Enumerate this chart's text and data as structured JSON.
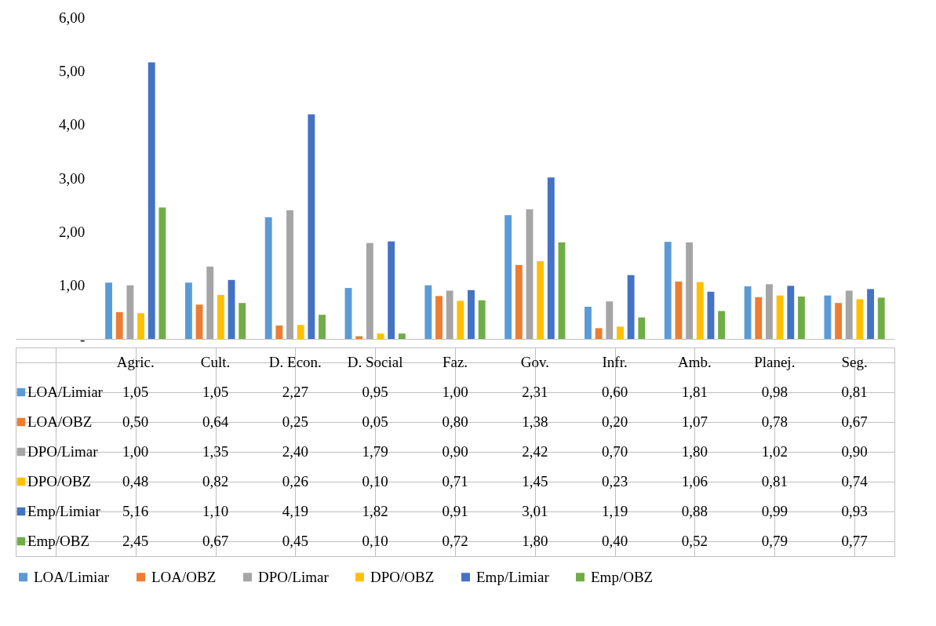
{
  "chart_data": {
    "type": "bar",
    "categories": [
      "Agric.",
      "Cult.",
      "D. Econ.",
      "D. Social",
      "Faz.",
      "Gov.",
      "Infr.",
      "Amb.",
      "Planej.",
      "Seg."
    ],
    "series": [
      {
        "name": "LOA/Limiar",
        "color": "#5b9bd5",
        "values": [
          1.05,
          1.05,
          2.27,
          0.95,
          1.0,
          2.31,
          0.6,
          1.81,
          0.98,
          0.81
        ],
        "value_labels": [
          "1,05",
          "1,05",
          "2,27",
          "0,95",
          "1,00",
          "2,31",
          "0,60",
          "1,81",
          "0,98",
          "0,81"
        ]
      },
      {
        "name": "LOA/OBZ",
        "color": "#ed7d31",
        "values": [
          0.5,
          0.64,
          0.25,
          0.05,
          0.8,
          1.38,
          0.2,
          1.07,
          0.78,
          0.67
        ],
        "value_labels": [
          "0,50",
          "0,64",
          "0,25",
          "0,05",
          "0,80",
          "1,38",
          "0,20",
          "1,07",
          "0,78",
          "0,67"
        ]
      },
      {
        "name": "DPO/Limar",
        "color": "#a5a5a5",
        "values": [
          1.0,
          1.35,
          2.4,
          1.79,
          0.9,
          2.42,
          0.7,
          1.8,
          1.02,
          0.9
        ],
        "value_labels": [
          "1,00",
          "1,35",
          "2,40",
          "1,79",
          "0,90",
          "2,42",
          "0,70",
          "1,80",
          "1,02",
          "0,90"
        ]
      },
      {
        "name": "DPO/OBZ",
        "color": "#ffc000",
        "values": [
          0.48,
          0.82,
          0.26,
          0.1,
          0.71,
          1.45,
          0.23,
          1.06,
          0.81,
          0.74
        ],
        "value_labels": [
          "0,48",
          "0,82",
          "0,26",
          "0,10",
          "0,71",
          "1,45",
          "0,23",
          "1,06",
          "0,81",
          "0,74"
        ]
      },
      {
        "name": "Emp/Limiar",
        "color": "#4472c4",
        "values": [
          5.16,
          1.1,
          4.19,
          1.82,
          0.91,
          3.01,
          1.19,
          0.88,
          0.99,
          0.93
        ],
        "value_labels": [
          "5,16",
          "1,10",
          "4,19",
          "1,82",
          "0,91",
          "3,01",
          "1,19",
          "0,88",
          "0,99",
          "0,93"
        ]
      },
      {
        "name": "Emp/OBZ",
        "color": "#70ad47",
        "values": [
          2.45,
          0.67,
          0.45,
          0.1,
          0.72,
          1.8,
          0.4,
          0.52,
          0.79,
          0.77
        ],
        "value_labels": [
          "2,45",
          "0,67",
          "0,45",
          "0,10",
          "0,72",
          "1,80",
          "0,40",
          "0,52",
          "0,79",
          "0,77"
        ]
      }
    ],
    "ylim": [
      0,
      6
    ],
    "yticks": [
      {
        "value": 0,
        "label": "-"
      },
      {
        "value": 1,
        "label": "1,00"
      },
      {
        "value": 2,
        "label": "2,00"
      },
      {
        "value": 3,
        "label": "3,00"
      },
      {
        "value": 4,
        "label": "4,00"
      },
      {
        "value": 5,
        "label": "5,00"
      },
      {
        "value": 6,
        "label": "6,00"
      }
    ],
    "grid": false,
    "legend": "bottom"
  }
}
